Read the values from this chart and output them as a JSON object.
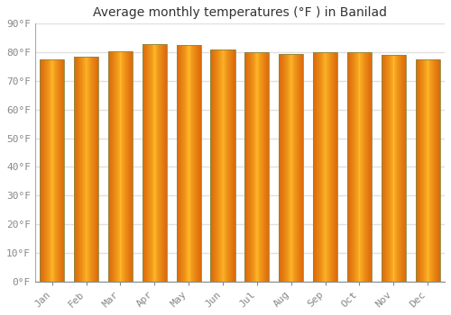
{
  "title": "Average monthly temperatures (°F ) in Banilad",
  "months": [
    "Jan",
    "Feb",
    "Mar",
    "Apr",
    "May",
    "Jun",
    "Jul",
    "Aug",
    "Sep",
    "Oct",
    "Nov",
    "Dec"
  ],
  "values": [
    77.5,
    78.5,
    80.5,
    83.0,
    82.5,
    81.0,
    80.0,
    79.5,
    80.0,
    80.0,
    79.0,
    77.5
  ],
  "ylim": [
    0,
    90
  ],
  "yticks": [
    0,
    10,
    20,
    30,
    40,
    50,
    60,
    70,
    80,
    90
  ],
  "ytick_labels": [
    "0°F",
    "10°F",
    "20°F",
    "30°F",
    "40°F",
    "50°F",
    "60°F",
    "70°F",
    "80°F",
    "90°F"
  ],
  "background_color": "#ffffff",
  "plot_bg_color": "#ffffff",
  "grid_color": "#e0e0e0",
  "bar_color_center": "#FFB733",
  "bar_color_edge": "#F07800",
  "bar_edge_stroke": "#A05000",
  "title_fontsize": 10,
  "tick_fontsize": 8,
  "bar_width": 0.72
}
